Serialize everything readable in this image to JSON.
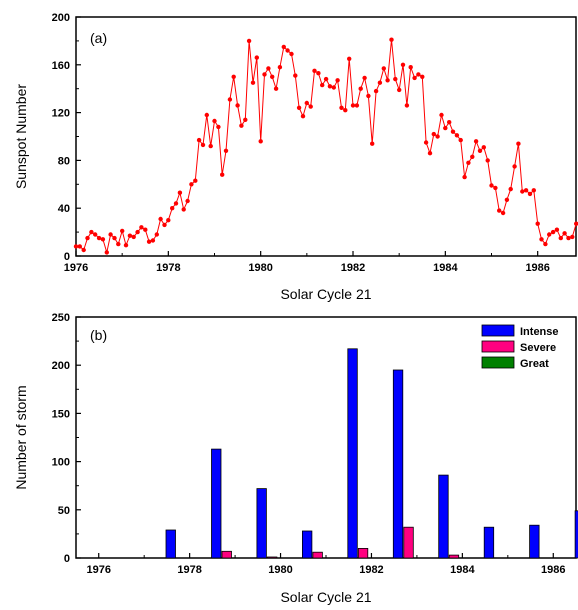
{
  "chart_data": [
    {
      "type": "line",
      "panel_label": "(a)",
      "xlabel": "Solar Cycle 21",
      "ylabel": "Sunspot Number",
      "xlim": [
        1976,
        1986.83
      ],
      "ylim": [
        0,
        200
      ],
      "x_ticks": [
        1976,
        1978,
        1980,
        1982,
        1984,
        1986
      ],
      "y_ticks": [
        0,
        40,
        80,
        120,
        160,
        200
      ],
      "grid": false,
      "series": [
        {
          "color": "#ff0000",
          "marker": "circle",
          "x_start": 1976.0,
          "x_step_months": 1,
          "values": [
            8,
            8,
            5,
            15,
            20,
            18,
            15,
            14,
            3,
            18,
            15,
            10,
            21,
            9,
            17,
            16,
            20,
            24,
            22,
            12,
            13,
            18,
            31,
            26,
            30,
            40,
            44,
            53,
            39,
            46,
            60,
            63,
            97,
            93,
            118,
            92,
            113,
            108,
            68,
            88,
            131,
            150,
            126,
            109,
            114,
            180,
            145,
            166,
            96,
            152,
            157,
            150,
            140,
            158,
            175,
            172,
            169,
            151,
            124,
            117,
            128,
            125,
            155,
            153,
            143,
            148,
            142,
            141,
            147,
            124,
            122,
            165,
            126,
            126,
            140,
            149,
            134,
            94,
            138,
            145,
            157,
            147,
            181,
            148,
            139,
            160,
            126,
            158,
            149,
            152,
            150,
            95,
            86,
            102,
            100,
            118,
            107,
            112,
            104,
            101,
            97,
            66,
            78,
            83,
            96,
            88,
            91,
            80,
            59,
            57,
            38,
            36,
            47,
            56,
            75,
            94,
            54,
            55,
            52,
            55,
            27,
            14,
            10,
            18,
            20,
            22,
            15,
            19,
            15,
            16,
            27,
            28,
            28,
            9,
            13,
            15,
            12,
            6,
            17,
            9,
            14,
            6,
            16,
            15,
            10,
            4,
            15,
            30,
            7,
            15
          ]
        }
      ]
    },
    {
      "type": "bar",
      "panel_label": "(b)",
      "xlabel": "Solar Cycle 21",
      "ylabel": "Number of storm",
      "xlim": [
        1975.5,
        1986.5
      ],
      "ylim": [
        0,
        250
      ],
      "x_ticks": [
        1976,
        1978,
        1980,
        1982,
        1984,
        1986
      ],
      "y_ticks": [
        0,
        50,
        100,
        150,
        200,
        250
      ],
      "legend_position": "top-right",
      "categories": [
        1976,
        1977,
        1978,
        1979,
        1980,
        1981,
        1982,
        1983,
        1984,
        1985,
        1986
      ],
      "series": [
        {
          "name": "Intense",
          "color": "#0000ff",
          "values": [
            0,
            29,
            113,
            72,
            28,
            217,
            195,
            86,
            32,
            34,
            49
          ]
        },
        {
          "name": "Severe",
          "color": "#ff0080",
          "values": [
            0,
            0,
            7,
            1,
            6,
            10,
            32,
            3,
            0,
            0,
            7
          ]
        },
        {
          "name": "Great",
          "color": "#008000",
          "values": [
            0,
            0,
            0,
            0,
            0,
            0,
            0,
            0,
            0,
            0,
            0
          ]
        }
      ]
    }
  ]
}
